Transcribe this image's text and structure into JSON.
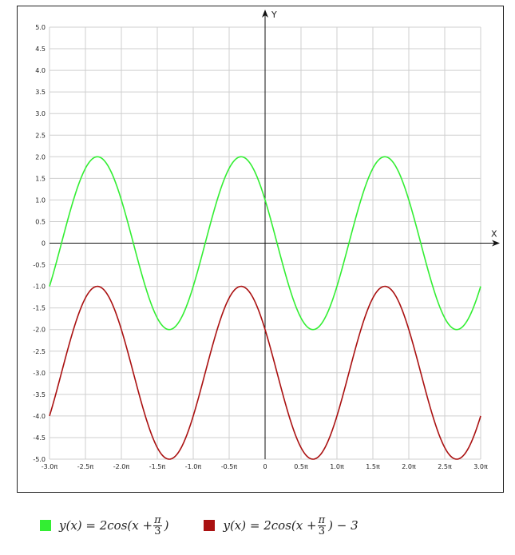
{
  "chart_data": {
    "type": "line",
    "xlabel": "X",
    "ylabel": "Y",
    "xlim": [
      -3.0,
      3.0
    ],
    "x_unit": "π",
    "ylim": [
      -5.0,
      5.0
    ],
    "grid": true,
    "x_ticks": [
      "-3.0π",
      "-2.5π",
      "-2.0π",
      "-1.5π",
      "-1.0π",
      "-0.5π",
      "0",
      "0.5π",
      "1.0π",
      "1.5π",
      "2.0π",
      "2.5π",
      "3.0π"
    ],
    "y_ticks": [
      "5.0",
      "4.5",
      "4.0",
      "3.5",
      "3.0",
      "2.5",
      "2.0",
      "1.5",
      "1.0",
      "0.5",
      "0",
      "-0.5",
      "-1.0",
      "-1.5",
      "-2.0",
      "-2.5",
      "-3.0",
      "-3.5",
      "-4.0",
      "-4.5",
      "-5.0"
    ],
    "series": [
      {
        "name": "y(x) = 2cos(x + π/3)",
        "color": "#33ee33",
        "amplitude": 2,
        "phase_over_pi": 0.3333,
        "offset": 0
      },
      {
        "name": "y(x) = 2cos(x + π/3) − 3",
        "color": "#aa1111",
        "amplitude": 2,
        "phase_over_pi": 0.3333,
        "offset": -3
      }
    ]
  },
  "legend": {
    "item1": {
      "color": "#33ee33",
      "pre": "y(x) = 2cos(x + ",
      "frac_num": "π",
      "frac_den": "3",
      "post": ")"
    },
    "item2": {
      "color": "#aa1111",
      "pre": "y(x) = 2cos(x + ",
      "frac_num": "π",
      "frac_den": "3",
      "post": ") − 3"
    }
  }
}
